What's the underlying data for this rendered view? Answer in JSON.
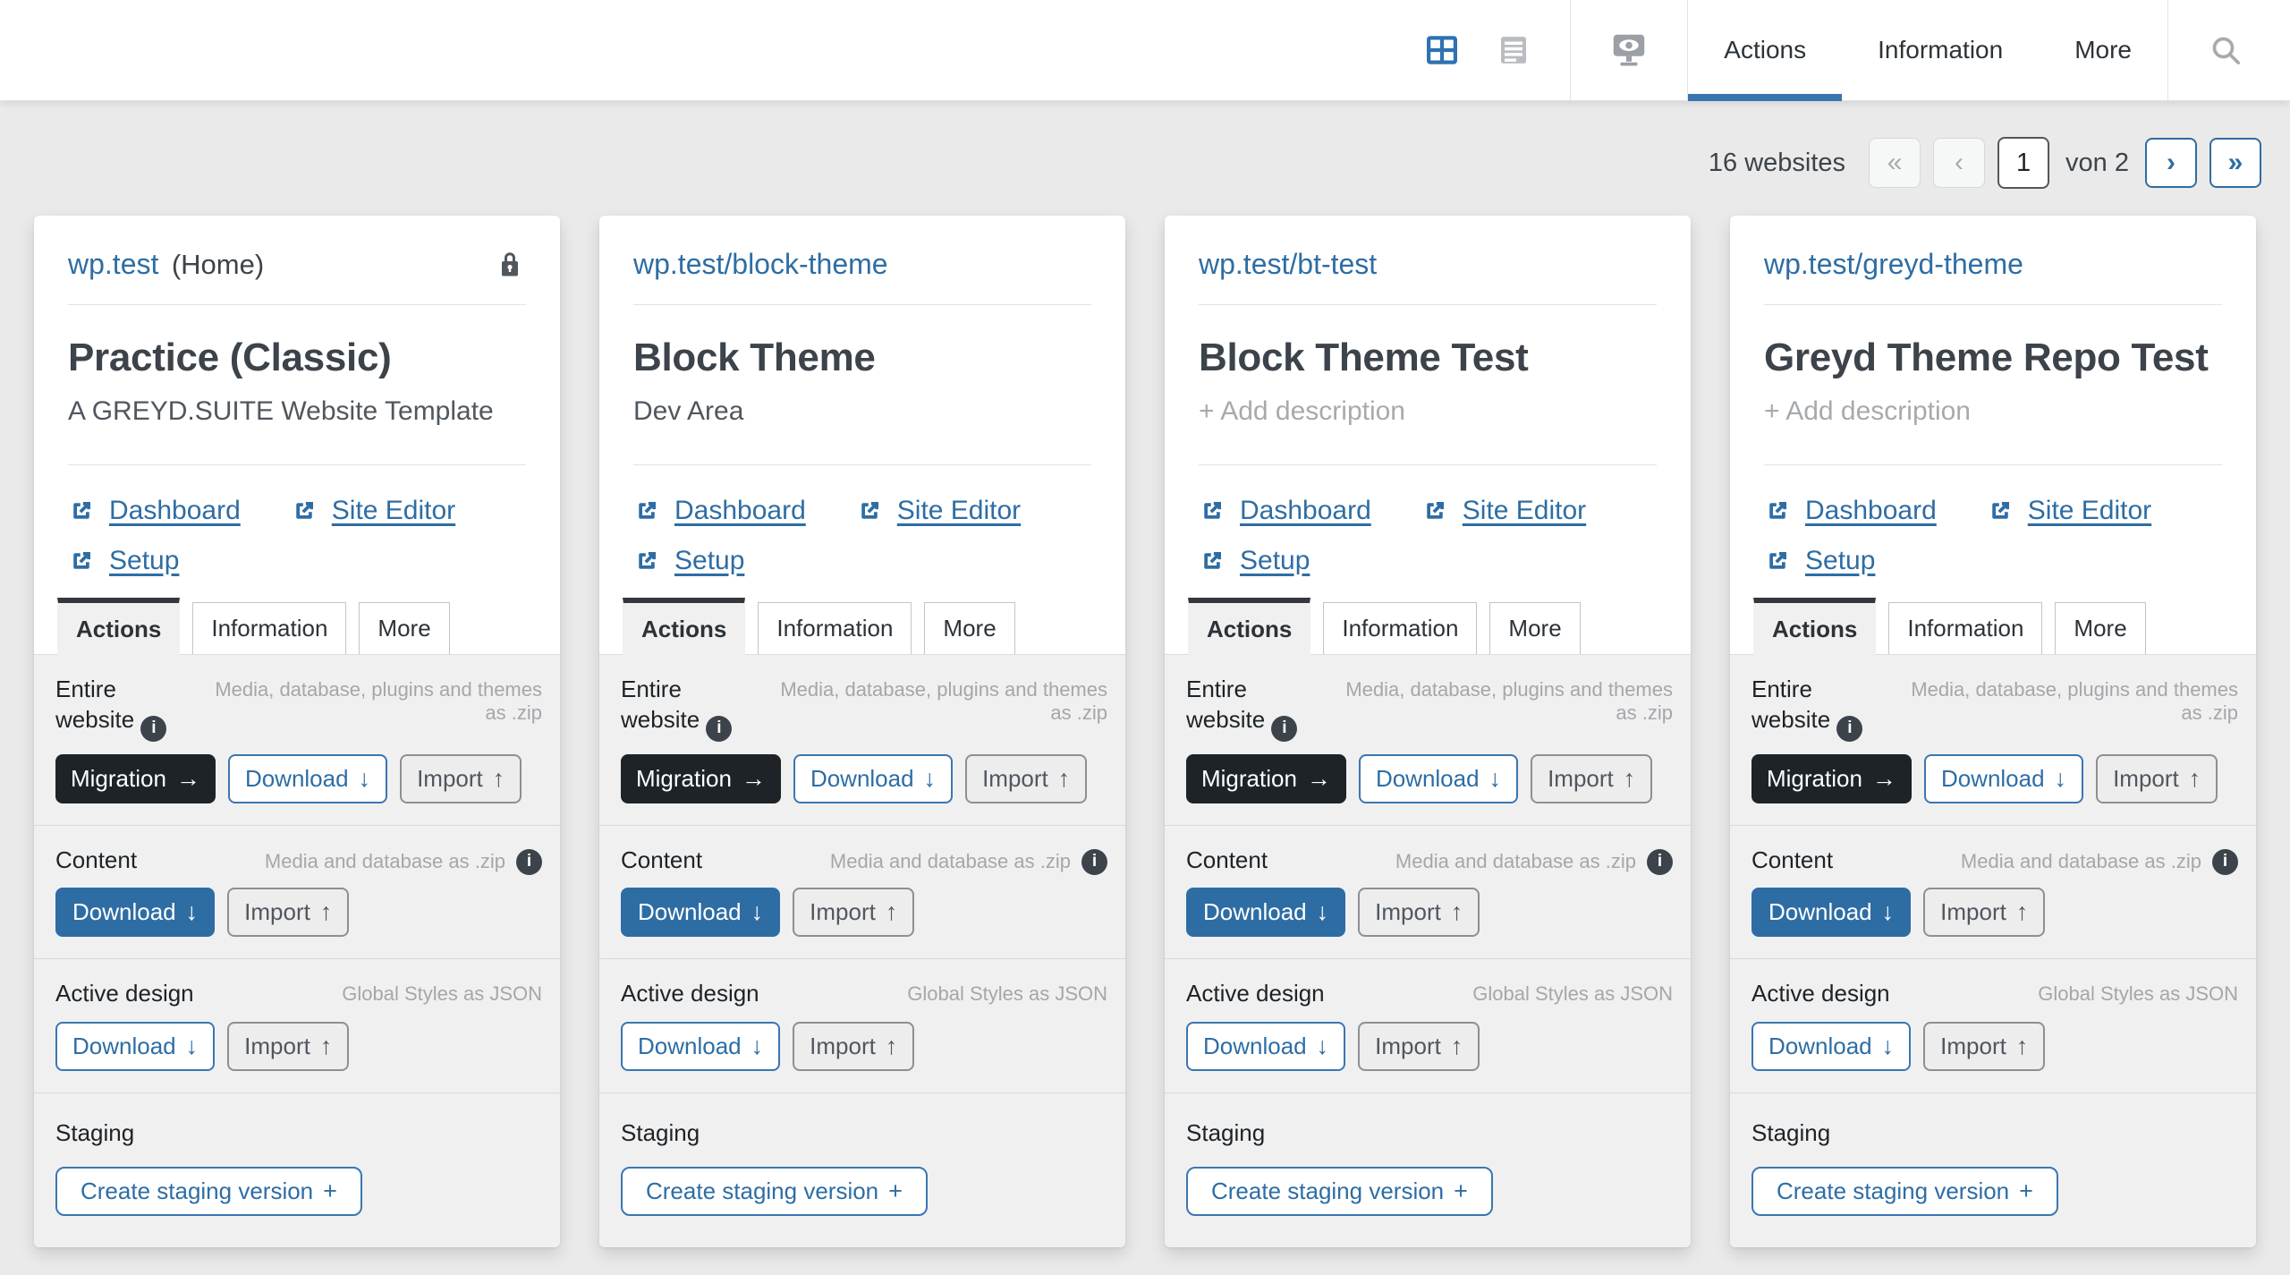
{
  "topbar": {
    "view_toggles": [
      {
        "name": "grid-view",
        "active": true
      },
      {
        "name": "list-view",
        "active": false
      }
    ],
    "tabs": [
      {
        "label": "Actions",
        "active": true
      },
      {
        "label": "Information",
        "active": false
      },
      {
        "label": "More",
        "active": false
      }
    ]
  },
  "pagination": {
    "count": "16 websites",
    "first": "«",
    "prev": "‹",
    "page": "1",
    "of": "von 2",
    "next": "›",
    "last": "»"
  },
  "icons": {
    "info": "i"
  },
  "card_common": {
    "tabs": [
      {
        "label": "Actions",
        "active": true
      },
      {
        "label": "Information",
        "active": false
      },
      {
        "label": "More",
        "active": false
      }
    ],
    "sections": [
      {
        "id": "entire-website",
        "label": "Entire website",
        "caption": "Media, database, plugins and themes as .zip",
        "info": "inline",
        "buttons": [
          {
            "label": "Migration",
            "arrow": "→",
            "variant": "dark"
          },
          {
            "label": "Download",
            "arrow": "↓",
            "variant": "outline"
          },
          {
            "label": "Import",
            "arrow": "↑",
            "variant": "gray"
          }
        ]
      },
      {
        "id": "content",
        "label": "Content",
        "caption": "Media and database as .zip",
        "info": "caption",
        "buttons": [
          {
            "label": "Download",
            "arrow": "↓",
            "variant": "solid"
          },
          {
            "label": "Import",
            "arrow": "↑",
            "variant": "gray"
          }
        ]
      },
      {
        "id": "active-design",
        "label": "Active design",
        "caption": "Global Styles as JSON",
        "info": "none",
        "buttons": [
          {
            "label": "Download",
            "arrow": "↓",
            "variant": "outline"
          },
          {
            "label": "Import",
            "arrow": "↑",
            "variant": "gray"
          }
        ]
      },
      {
        "id": "staging",
        "label": "Staging",
        "caption": "",
        "info": "none",
        "buttons": [
          {
            "label": "Create staging version",
            "arrow": "+",
            "variant": "outline"
          }
        ]
      }
    ]
  },
  "cards": [
    {
      "url": "wp.test",
      "url_note": "(Home)",
      "locked": true,
      "title": "Practice (Classic)",
      "description": "A GREYD.SUITE Website Template",
      "description_placeholder": false,
      "links": [
        "Dashboard",
        "Site Editor",
        "Setup"
      ]
    },
    {
      "url": "wp.test/block-theme",
      "url_note": "",
      "locked": false,
      "title": "Block Theme",
      "description": "Dev Area",
      "description_placeholder": false,
      "links": [
        "Dashboard",
        "Site Editor",
        "Setup"
      ]
    },
    {
      "url": "wp.test/bt-test",
      "url_note": "",
      "locked": false,
      "title": "Block Theme Test",
      "description": "+ Add description",
      "description_placeholder": true,
      "links": [
        "Dashboard",
        "Site Editor",
        "Setup"
      ]
    },
    {
      "url": "wp.test/greyd-theme",
      "url_note": "",
      "locked": false,
      "title": "Greyd Theme Repo Test",
      "description": "+ Add description",
      "description_placeholder": true,
      "links": [
        "Dashboard",
        "Site Editor",
        "Setup"
      ]
    }
  ]
}
